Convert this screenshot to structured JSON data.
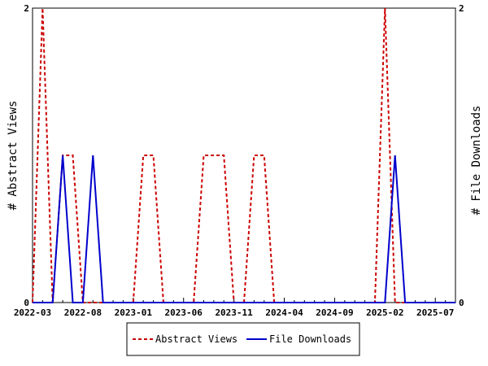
{
  "chart_data": {
    "type": "line",
    "title": "",
    "ylabel_left": "# Abstract Views",
    "ylabel_right": "# File Downloads",
    "x_tick_labels": [
      "2022-03",
      "2022-08",
      "2023-01",
      "2023-06",
      "2023-11",
      "2024-04",
      "2024-09",
      "2025-02",
      "2025-07"
    ],
    "x_months": [
      "2022-03",
      "2022-04",
      "2022-05",
      "2022-06",
      "2022-07",
      "2022-08",
      "2022-09",
      "2022-10",
      "2022-11",
      "2022-12",
      "2023-01",
      "2023-02",
      "2023-03",
      "2023-04",
      "2023-05",
      "2023-06",
      "2023-07",
      "2023-08",
      "2023-09",
      "2023-10",
      "2023-11",
      "2023-12",
      "2024-01",
      "2024-02",
      "2024-03",
      "2024-04",
      "2024-05",
      "2024-06",
      "2024-07",
      "2024-08",
      "2024-09",
      "2024-10",
      "2024-11",
      "2024-12",
      "2025-01",
      "2025-02",
      "2025-03",
      "2025-04",
      "2025-05",
      "2025-06",
      "2025-07",
      "2025-08",
      "2025-09"
    ],
    "ylim_left": [
      0,
      2
    ],
    "ylim_right": [
      0,
      2
    ],
    "y_ticks_left": [
      "0",
      "2"
    ],
    "y_ticks_right": [
      "0",
      "2"
    ],
    "legend_position": "bottom",
    "series": [
      {
        "name": "Abstract Views",
        "color": "#cc0000",
        "dash": "dashed",
        "axis": "left",
        "values": [
          0,
          2,
          0,
          1,
          1,
          0,
          0,
          0,
          0,
          0,
          0,
          1,
          1,
          0,
          0,
          0,
          0,
          1,
          1,
          1,
          0,
          0,
          1,
          1,
          0,
          0,
          0,
          0,
          0,
          0,
          0,
          0,
          0,
          0,
          0,
          2,
          0,
          0,
          0,
          0,
          0,
          0,
          0
        ]
      },
      {
        "name": "File Downloads",
        "color": "#0000cc",
        "dash": "solid",
        "axis": "right",
        "values": [
          0,
          0,
          0,
          1,
          0,
          0,
          1,
          0,
          0,
          0,
          0,
          0,
          0,
          0,
          0,
          0,
          0,
          0,
          0,
          0,
          0,
          0,
          0,
          0,
          0,
          0,
          0,
          0,
          0,
          0,
          0,
          0,
          0,
          0,
          0,
          0,
          1,
          0,
          0,
          0,
          0,
          0,
          0
        ]
      }
    ]
  }
}
